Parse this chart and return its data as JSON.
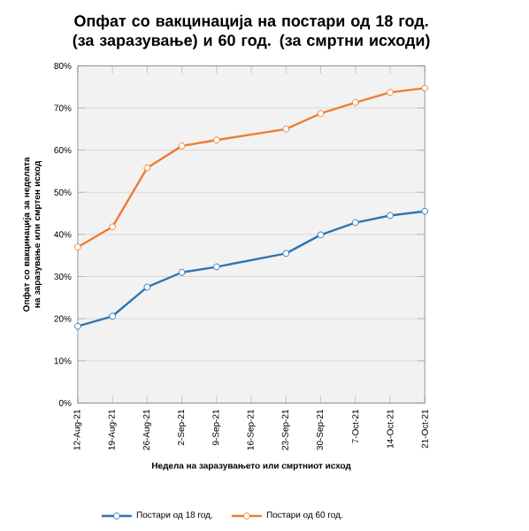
{
  "chart_data": {
    "type": "line",
    "title": "Опфат со вакцинација на постари од 18 год. (за заразување) и 60 год. (за смртни исходи)",
    "xlabel": "Недела на заразувањето или смртниот исход",
    "ylabel": "Опфат со вакцинација за неделата на заразување или смртен исход",
    "categories": [
      "12-Aug-21",
      "19-Aug-21",
      "26-Aug-21",
      "2-Sep-21",
      "9-Sep-21",
      "16-Sep-21",
      "23-Sep-21",
      "30-Sep-21",
      "7-Oct-21",
      "14-Oct-21",
      "21-Oct-21"
    ],
    "series": [
      {
        "name": "Постари од 18 год.",
        "color": "#2e75b6",
        "values": [
          18.2,
          20.6,
          27.5,
          31.0,
          32.3,
          null,
          35.5,
          39.9,
          42.8,
          44.5,
          45.5
        ]
      },
      {
        "name": "Постари од 60 год.",
        "color": "#ed7d31",
        "values": [
          37,
          41.8,
          55.8,
          61,
          62.4,
          null,
          65,
          68.7,
          71.3,
          73.7,
          74.7
        ]
      }
    ],
    "ylim": [
      0,
      80
    ],
    "yticks": [
      {
        "value": 0,
        "label": "0%"
      },
      {
        "value": 10,
        "label": "10%"
      },
      {
        "value": 20,
        "label": "20%"
      },
      {
        "value": 30,
        "label": "30%"
      },
      {
        "value": 40,
        "label": "40%"
      },
      {
        "value": 50,
        "label": "50%"
      },
      {
        "value": 60,
        "label": "60%"
      },
      {
        "value": 70,
        "label": "70%"
      },
      {
        "value": 80,
        "label": "80%"
      }
    ],
    "grid": "y",
    "legend": "bottom",
    "marker": "circle",
    "line_style": "solid"
  }
}
